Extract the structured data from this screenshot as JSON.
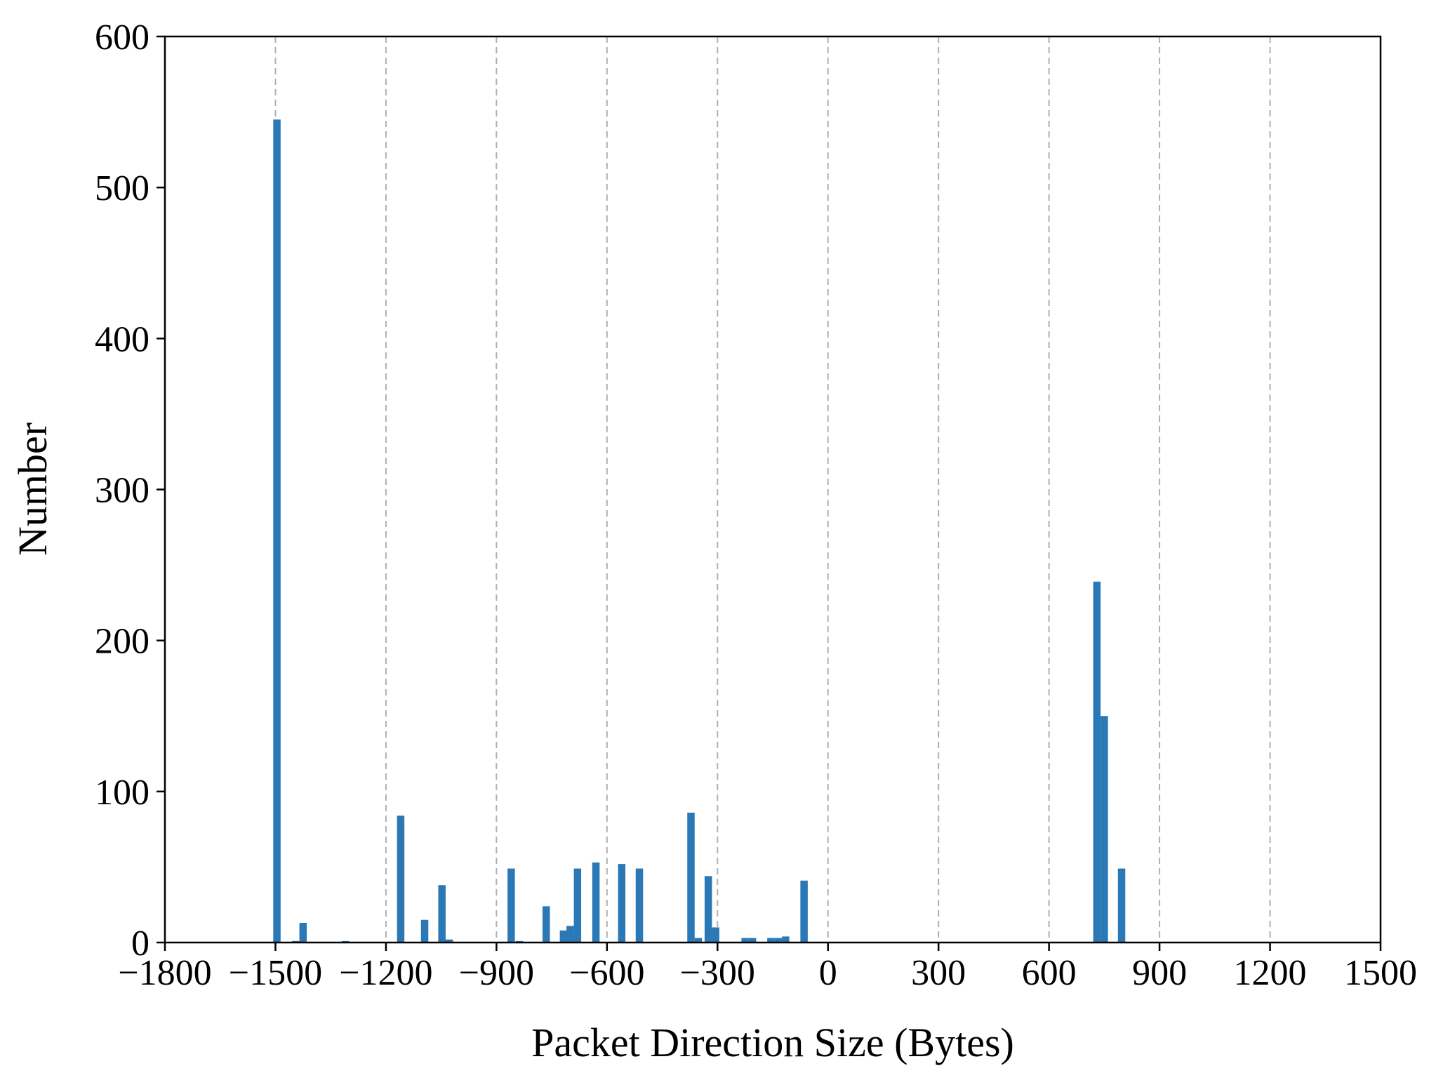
{
  "chart_data": {
    "type": "bar",
    "title": "",
    "xlabel": "Packet Direction Size (Bytes)",
    "ylabel": "Number",
    "xlim": [
      -1800,
      1500
    ],
    "ylim": [
      0,
      600
    ],
    "x_ticks": [
      -1800,
      -1500,
      -1200,
      -900,
      -600,
      -300,
      0,
      300,
      600,
      900,
      1200,
      1500
    ],
    "x_tick_labels": [
      "−1800",
      "−1500",
      "−1200",
      "−900",
      "−600",
      "−300",
      "0",
      "300",
      "600",
      "900",
      "1200",
      "1500"
    ],
    "y_ticks": [
      0,
      100,
      200,
      300,
      400,
      500,
      600
    ],
    "y_tick_labels": [
      "0",
      "100",
      "200",
      "300",
      "400",
      "500",
      "600"
    ],
    "grid": {
      "x": true,
      "y": false,
      "style": "dashed"
    },
    "bar_width": 20,
    "color": "#2a78b5",
    "bars": [
      {
        "x": -1496,
        "y": 545
      },
      {
        "x": -1445,
        "y": 1
      },
      {
        "x": -1425,
        "y": 13
      },
      {
        "x": -1310,
        "y": 1
      },
      {
        "x": -1160,
        "y": 84
      },
      {
        "x": -1095,
        "y": 15
      },
      {
        "x": -1048,
        "y": 38
      },
      {
        "x": -1028,
        "y": 2
      },
      {
        "x": -860,
        "y": 49
      },
      {
        "x": -838,
        "y": 1
      },
      {
        "x": -765,
        "y": 24
      },
      {
        "x": -718,
        "y": 8
      },
      {
        "x": -700,
        "y": 11
      },
      {
        "x": -680,
        "y": 49
      },
      {
        "x": -630,
        "y": 53
      },
      {
        "x": -560,
        "y": 52
      },
      {
        "x": -512,
        "y": 49
      },
      {
        "x": -372,
        "y": 86
      },
      {
        "x": -352,
        "y": 3
      },
      {
        "x": -325,
        "y": 44
      },
      {
        "x": -305,
        "y": 10
      },
      {
        "x": -225,
        "y": 3
      },
      {
        "x": -205,
        "y": 3
      },
      {
        "x": -155,
        "y": 3
      },
      {
        "x": -135,
        "y": 3
      },
      {
        "x": -115,
        "y": 4
      },
      {
        "x": -65,
        "y": 41
      },
      {
        "x": 730,
        "y": 239
      },
      {
        "x": 750,
        "y": 150
      },
      {
        "x": 797,
        "y": 49
      }
    ]
  }
}
